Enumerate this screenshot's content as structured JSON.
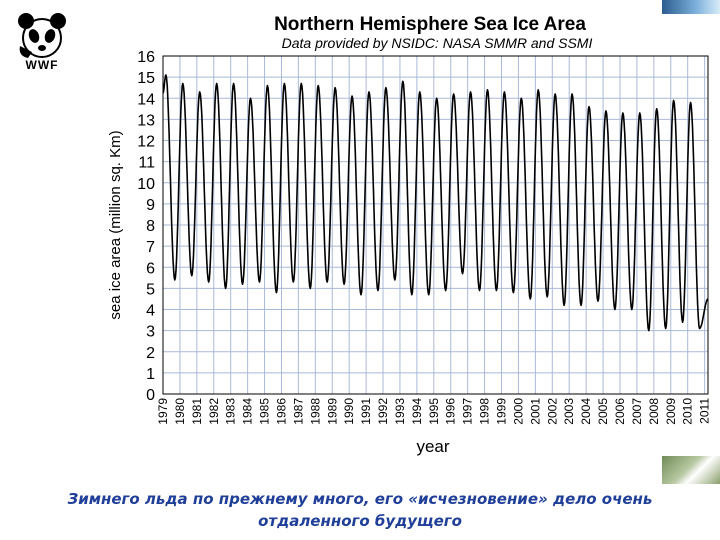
{
  "logo": {
    "text": "WWF",
    "icon": "panda-icon"
  },
  "chart_data": {
    "type": "line",
    "title": "Northern Hemisphere Sea Ice Area",
    "subtitle": "Data provided by NSIDC: NASA SMMR and SSMI",
    "xlabel": "year",
    "ylabel": "sea ice area (million sq. Km)",
    "ylim": [
      0,
      16
    ],
    "yticks": [
      "0",
      "1",
      "2",
      "3",
      "4",
      "5",
      "6",
      "7",
      "8",
      "9",
      "10",
      "11",
      "12",
      "13",
      "14",
      "15",
      "16"
    ],
    "xlim": [
      1979,
      2011.2
    ],
    "xticks": [
      "1979",
      "1980",
      "1981",
      "1982",
      "1983",
      "1984",
      "1985",
      "1986",
      "1987",
      "1988",
      "1989",
      "1990",
      "1991",
      "1992",
      "1993",
      "1994",
      "1995",
      "1996",
      "1997",
      "1998",
      "1999",
      "2000",
      "2001",
      "2002",
      "2003",
      "2004",
      "2005",
      "2006",
      "2007",
      "2008",
      "2009",
      "2010",
      "2011"
    ],
    "grid": true,
    "series": [
      {
        "color": "#000000",
        "annual_maxima": [
          15.1,
          14.7,
          14.3,
          14.7,
          14.7,
          14.0,
          14.6,
          14.7,
          14.7,
          14.6,
          14.5,
          14.1,
          14.3,
          14.5,
          14.8,
          14.3,
          14.0,
          14.2,
          14.3,
          14.4,
          14.3,
          14.0,
          14.4,
          14.2,
          14.2,
          13.6,
          13.4,
          13.3,
          13.3,
          13.5,
          13.9,
          13.8
        ],
        "annual_minima": [
          5.4,
          5.6,
          5.3,
          5.0,
          5.2,
          5.3,
          4.8,
          5.3,
          5.0,
          5.3,
          5.2,
          4.7,
          4.9,
          5.4,
          4.7,
          4.7,
          4.9,
          5.7,
          4.9,
          4.9,
          4.8,
          4.5,
          4.6,
          4.2,
          4.2,
          4.4,
          4.0,
          4.0,
          3.0,
          3.1,
          3.4,
          3.1
        ],
        "last_value": 4.5
      }
    ]
  },
  "caption": {
    "line1": "Зимнего льда по прежнему много, его «исчезновение» дело очень",
    "line2": "отдаленного будущего"
  }
}
